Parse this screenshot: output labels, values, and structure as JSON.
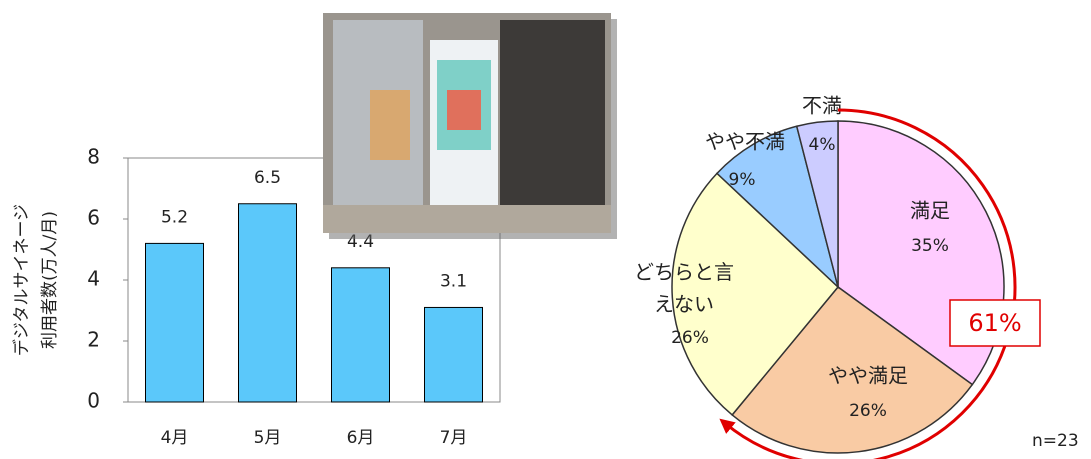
{
  "chart_data": [
    {
      "type": "bar",
      "y_label": [
        "デジタルサイネージ",
        "利用者数(万人/月)"
      ],
      "categories": [
        "4月",
        "5月",
        "6月",
        "7月"
      ],
      "values": [
        5.2,
        6.5,
        4.4,
        3.1
      ],
      "color": "#5bc8fa",
      "ylim": [
        0,
        8
      ],
      "yticks": [
        0,
        2,
        4,
        6,
        8
      ]
    },
    {
      "type": "pie",
      "categories": [
        "満足",
        "やや満足",
        "どちらと言えない",
        "やや不満",
        "不満"
      ],
      "values": [
        35,
        26,
        26,
        9,
        4
      ],
      "value_labels": [
        "35%",
        "26%",
        "26%",
        "9%",
        "4%"
      ],
      "colors": [
        "#ffccff",
        "#f9cba4",
        "#ffffcc",
        "#99ccff",
        "#ccccff"
      ],
      "annotations": [
        "61%",
        "n=23"
      ]
    }
  ]
}
